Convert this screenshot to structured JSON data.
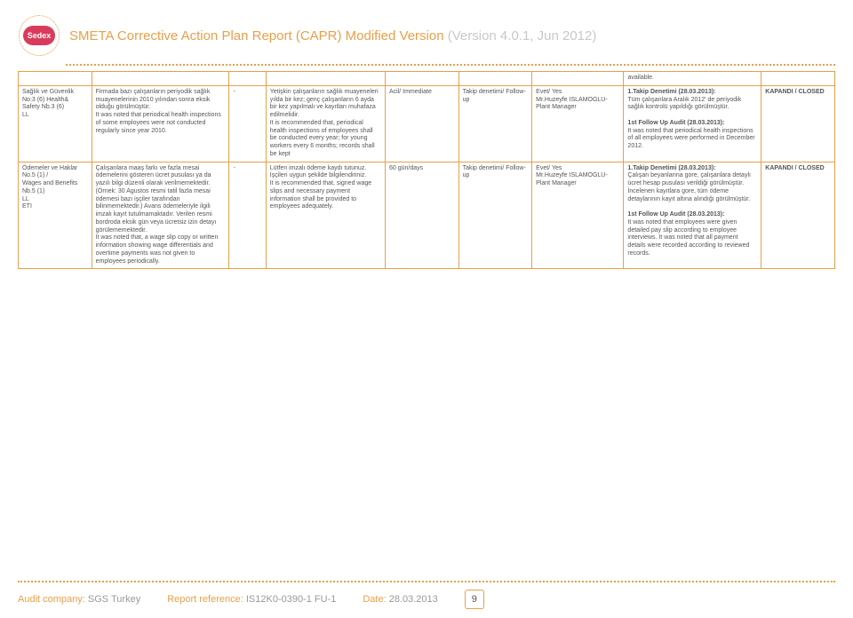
{
  "header": {
    "logo_text": "Sedex",
    "title_main": "SMETA Corrective Action Plan Report (CAPR) Modified Version",
    "title_version": "(Version 4.0.1, Jun 2012)"
  },
  "table": {
    "top_row": {
      "cells": [
        "",
        "",
        "",
        "",
        "",
        "",
        "",
        "available.",
        ""
      ]
    },
    "rows": [
      {
        "c0": "Sağlık ve Güvenlik No:3 (6) Health& Safety Nb.3 (6)\nLL",
        "c1": "Firmada bazı çalışanların periyodik sağlık muayenelerinin 2010 yılından sonra eksik olduğu görülmüştür.\nIt was noted that periodical health inspections of some employees were not conducted regularly since year 2010.",
        "c2": "-",
        "c3": "Yetişkin çalışanların sağlık muayeneleri yılda bir kez; genç çalışanların 6 ayda bir kez yapılmalı ve kayıtları muhafaza edilmelidir.\nIt is recommended that, periodical health inspections of employees shall be conducted every year; for young workers every 6 months; records shall be kept",
        "c4": "Acil/ Immediate",
        "c5": "Takip denetimi/ Follow-up",
        "c6": "Evet/ Yes\nMr.Huzeyfe ISLAMOGLU- Plant Manager",
        "c7_title1": "1.Takip Denetimi (28.03.2013):",
        "c7_body1": "Tüm çalışanlara Aralık 2012' de periyodik sağlık kontrolü yapıldığı görülmüştür.",
        "c7_title2": "1st Follow Up Audit (28.03.2013):",
        "c7_body2": "It was noted that periodical health inspections of all employees were performed in December 2012.",
        "c8": "KAPANDI / CLOSED"
      },
      {
        "c0": "Ödemeler ve Haklar No.5 (1) /\nWages and Benefits Nb.5 (1)\nLL\nETI",
        "c1": "Çalışanlara maaş farkı ve fazla mesai ödemelerini gösteren ücret pusulası ya da yazılı bilgi düzenli olarak verilmemektedir. (Örnek: 30 Agustos resmi tatil fazla mesai ödemesi bazı işçiler tarafından bilinmemektedir.) Avans ödemeleriyle ilgili imzalı kayıt tutulmamaktadır. Verilen resmi bordroda eksik gün veya ücretsiz izin detayı görülememektedir.\nIt was noted that, a wage slip copy or written information showing wage differentials and overtime payments was not given to employees periodically.",
        "c2": "-",
        "c3": "Lütfen imzalı ödeme kaydı tutunuz. İşçileri uygun şekilde bilgilendiriniz.\nIt is recommended that, signed wage slips and necessary payment information shall be provided to employees adequately.",
        "c4": "60 gün/days",
        "c5": "Takip denetimi/ Follow-up",
        "c6": "Evet/ Yes\nMr.Huzeyfe ISLAMOGLU- Plant Manager",
        "c7_title1": "1.Takip Denetimi (28.03.2013):",
        "c7_body1": "Çalışan beyanlarına gore, çalışanlara detaylı ücret hesap pusulası verildiği görülmüştür. İncelenen kayıtlara gore, tüm ödeme detaylarının kayıt altına alındığı görülmüştür.",
        "c7_title2": "1st Follow Up Audit (28.03.2013):",
        "c7_body2": "It was noted that employees were given detailed pay slip according to employee interviews. It was noted that all payment details were recorded according to reviewed records.",
        "c8": "KAPANDI / CLOSED"
      }
    ]
  },
  "footer": {
    "audit_label": "Audit company:",
    "audit_value": "SGS Turkey",
    "ref_label": "Report reference:",
    "ref_value": "IS12K0-0390-1 FU-1",
    "date_label": "Date:",
    "date_value": "28.03.2013",
    "page": "9"
  }
}
